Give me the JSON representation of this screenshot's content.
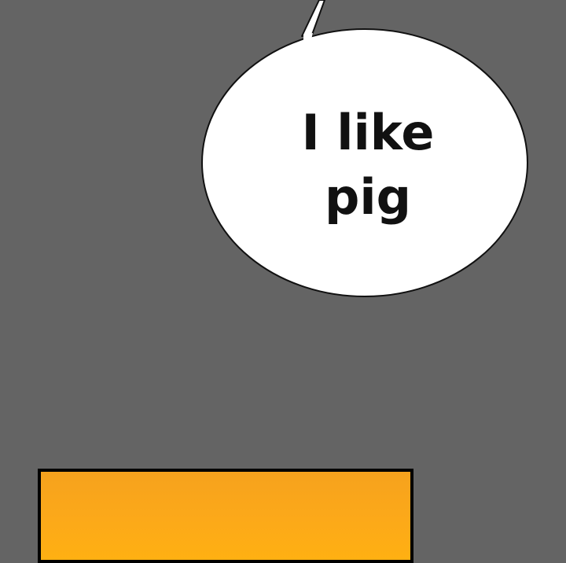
{
  "speech_bubble": {
    "line1": "I like",
    "line2": "pig"
  },
  "colors": {
    "background": "#646464",
    "bubble_fill": "#ffffff",
    "bubble_outline": "#111111",
    "text": "#111111",
    "panel_fill": "#fca919",
    "panel_border": "#000000"
  }
}
